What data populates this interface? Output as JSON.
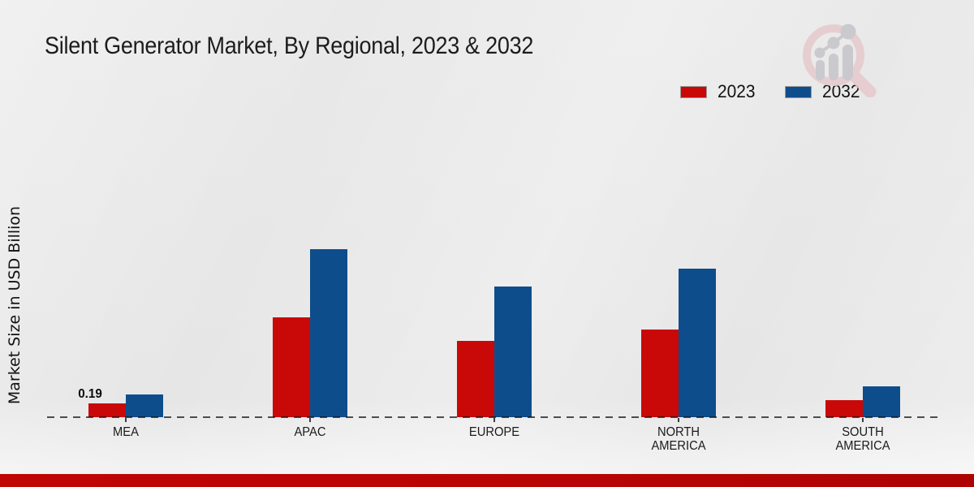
{
  "title": "Silent Generator Market, By Regional, 2023 & 2032",
  "y_axis_label": "Market Size in USD Billion",
  "legend": {
    "position": "top-right",
    "items": [
      {
        "label": "2023",
        "color": "#c90808"
      },
      {
        "label": "2032",
        "color": "#0e4d8c"
      }
    ]
  },
  "colors": {
    "series_2023": "#c90808",
    "series_2032": "#0e4d8c",
    "footer_strip": "#b90404",
    "background": "#e8e8e8",
    "axis_dash": "#1a1a1a"
  },
  "watermark_icon": "growth-chart-magnifier-logo",
  "chart_data": {
    "type": "bar",
    "title": "Silent Generator Market, By Regional, 2023 & 2032",
    "xlabel": "",
    "ylabel": "Market Size in USD Billion",
    "categories": [
      "MEA",
      "APAC",
      "EUROPE",
      "NORTH AMERICA",
      "SOUTH AMERICA"
    ],
    "series": [
      {
        "name": "2023",
        "color": "#c90808",
        "values": [
          0.19,
          1.34,
          1.02,
          1.17,
          0.23
        ]
      },
      {
        "name": "2032",
        "color": "#0e4d8c",
        "values": [
          0.3,
          2.25,
          1.75,
          1.99,
          0.41
        ]
      }
    ],
    "data_labels": [
      {
        "category": "MEA",
        "series": "2023",
        "text": "0.19"
      }
    ],
    "ylim": [
      0,
      2.5
    ],
    "grid": false,
    "y_axis_ticks": "none",
    "baseline_style": "dashed",
    "legend_position": "top-right"
  }
}
